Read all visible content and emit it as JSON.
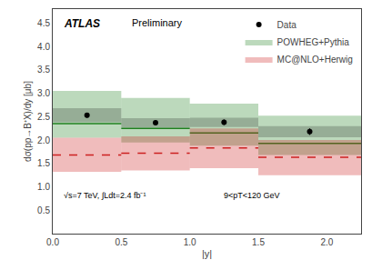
{
  "chart_data": {
    "type": "errorbar",
    "xlabel": "|y|",
    "ylabel": "dσ(pp→B⁺X)/dy [μb]",
    "annotations": [
      "ATLAS",
      "Preliminary",
      "√s=7 TeV, ∫Ldt=2.4 fb⁻¹",
      "9<pT<120 GeV"
    ],
    "xlim": [
      0,
      2.25
    ],
    "ylim": [
      0,
      4.8
    ],
    "xticks": [
      {
        "value": 0,
        "label": "0.0"
      },
      0.5,
      {
        "value": 1.0,
        "label": "1.0"
      },
      1.5,
      {
        "value": 2.0,
        "label": "2.0"
      }
    ],
    "yticks": [
      0.5,
      {
        "value": 1.0,
        "label": "1.0"
      },
      1.5,
      {
        "value": 2.0,
        "label": "2.0"
      },
      2.5,
      {
        "value": 3.0,
        "label": "3.0"
      },
      3.5,
      {
        "value": 4.0,
        "label": "4.0"
      },
      4.5
    ],
    "grid": false,
    "legend": "upper right",
    "bins": [
      0.0,
      0.5,
      1.0,
      1.5,
      2.25
    ],
    "series": [
      {
        "name": "Data",
        "type": "scatter",
        "color": "black",
        "marker": "circle",
        "x": [
          0.25,
          0.75,
          1.25,
          1.875
        ],
        "values": [
          2.53,
          2.37,
          2.38,
          2.18
        ],
        "error": [
          0.05,
          0.05,
          0.06,
          0.07
        ],
        "sys_lo": [
          2.38,
          2.27,
          2.28,
          2.06
        ],
        "sys_hi": [
          2.68,
          2.47,
          2.48,
          2.3
        ]
      },
      {
        "name": "POWHEG+Pythia",
        "type": "band",
        "color": "#208020",
        "line_style": "solid",
        "values": [
          2.35,
          2.25,
          2.15,
          1.93
        ],
        "lo": [
          2.05,
          1.95,
          1.88,
          1.68
        ],
        "hi": [
          3.05,
          2.9,
          2.78,
          2.52
        ]
      },
      {
        "name": "MC@NLO+Herwig",
        "type": "band",
        "color": "#cc2020",
        "line_style": "dash",
        "values": [
          1.68,
          1.72,
          1.83,
          1.63
        ],
        "lo": [
          1.32,
          1.35,
          1.4,
          1.25
        ],
        "hi": [
          2.05,
          2.08,
          2.25,
          2.0
        ]
      }
    ]
  }
}
